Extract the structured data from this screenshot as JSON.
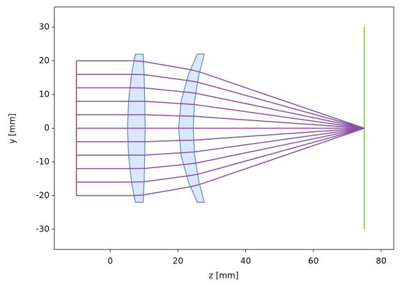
{
  "chart_data": {
    "type": "line",
    "xlabel": "z [mm]",
    "ylabel": "y [mm]",
    "xlim": [
      -16.5,
      83.7
    ],
    "ylim": [
      -36,
      36
    ],
    "xticks": [
      0,
      20,
      40,
      60,
      80
    ],
    "yticks": [
      -30,
      -20,
      -10,
      0,
      10,
      20,
      30
    ],
    "lenses": [
      {
        "color": "#dae8fc",
        "edgecolor": "#5b87bd",
        "x": [
          7.4,
          6.3,
          5.4,
          5.1,
          5.4,
          6.3,
          7.4,
          9.7,
          10.0,
          10.2,
          10.3,
          10.2,
          10.0,
          9.7
        ],
        "y": [
          22,
          16,
          8,
          0,
          -8,
          -16,
          -22,
          -22,
          -16,
          -8,
          0,
          8,
          16,
          22
        ]
      },
      {
        "color": "#dae8fc",
        "edgecolor": "#5b87bd",
        "x": [
          25.7,
          23.1,
          20.9,
          20.2,
          20.9,
          23.1,
          25.7,
          27.8,
          26.2,
          24.9,
          24.5,
          24.9,
          26.2,
          27.8
        ],
        "y": [
          22,
          16,
          8,
          0,
          -8,
          -16,
          -22,
          -22,
          -16,
          -8,
          0,
          8,
          16,
          22
        ]
      }
    ],
    "series": [
      {
        "color": "#b0413e",
        "x": [
          -10,
          -10
        ],
        "values": [
          -20,
          20
        ]
      },
      {
        "color": "#7ab648",
        "x": [
          75,
          75
        ],
        "values": [
          -30,
          30
        ]
      },
      {
        "color": "#8a4fa3",
        "x": [
          -10,
          7.0,
          9.8,
          23.6,
          26.4,
          75
        ],
        "values": [
          20,
          20,
          19.8,
          17.4,
          16.7,
          0
        ]
      },
      {
        "color": "#8a4fa3",
        "x": [
          -10,
          6.3,
          10.0,
          22.5,
          25.8,
          75
        ],
        "values": [
          16,
          16,
          15.9,
          14.2,
          13.7,
          0
        ]
      },
      {
        "color": "#8a4fa3",
        "x": [
          -10,
          5.8,
          10.1,
          21.5,
          25.2,
          75
        ],
        "values": [
          12,
          12,
          11.95,
          10.8,
          10.4,
          0
        ]
      },
      {
        "color": "#8a4fa3",
        "x": [
          -10,
          5.4,
          10.2,
          20.8,
          24.8,
          75
        ],
        "values": [
          8,
          8,
          8,
          7.3,
          7.05,
          0
        ]
      },
      {
        "color": "#8a4fa3",
        "x": [
          -10,
          5.2,
          10.3,
          20.4,
          24.6,
          75
        ],
        "values": [
          4,
          4,
          4,
          3.65,
          3.55,
          0
        ]
      },
      {
        "color": "#8a4fa3",
        "x": [
          -10,
          5.1,
          10.3,
          20.2,
          24.5,
          75
        ],
        "values": [
          0,
          0,
          0,
          0,
          0,
          0
        ]
      },
      {
        "color": "#8a4fa3",
        "x": [
          -10,
          5.2,
          10.3,
          20.4,
          24.6,
          75
        ],
        "values": [
          -4,
          -4,
          -4,
          -3.65,
          -3.55,
          0
        ]
      },
      {
        "color": "#8a4fa3",
        "x": [
          -10,
          5.4,
          10.2,
          20.8,
          24.8,
          75
        ],
        "values": [
          -8,
          -8,
          -8,
          -7.3,
          -7.05,
          0
        ]
      },
      {
        "color": "#8a4fa3",
        "x": [
          -10,
          5.8,
          10.1,
          21.5,
          25.2,
          75
        ],
        "values": [
          -12,
          -12,
          -11.95,
          -10.8,
          -10.4,
          0
        ]
      },
      {
        "color": "#8a4fa3",
        "x": [
          -10,
          6.3,
          10.0,
          22.5,
          25.8,
          75
        ],
        "values": [
          -16,
          -16,
          -15.9,
          -14.2,
          -13.7,
          0
        ]
      },
      {
        "color": "#8a4fa3",
        "x": [
          -10,
          7.0,
          9.8,
          23.6,
          26.4,
          75
        ],
        "values": [
          -20,
          -20,
          -19.8,
          -17.4,
          -16.7,
          0
        ]
      }
    ]
  }
}
